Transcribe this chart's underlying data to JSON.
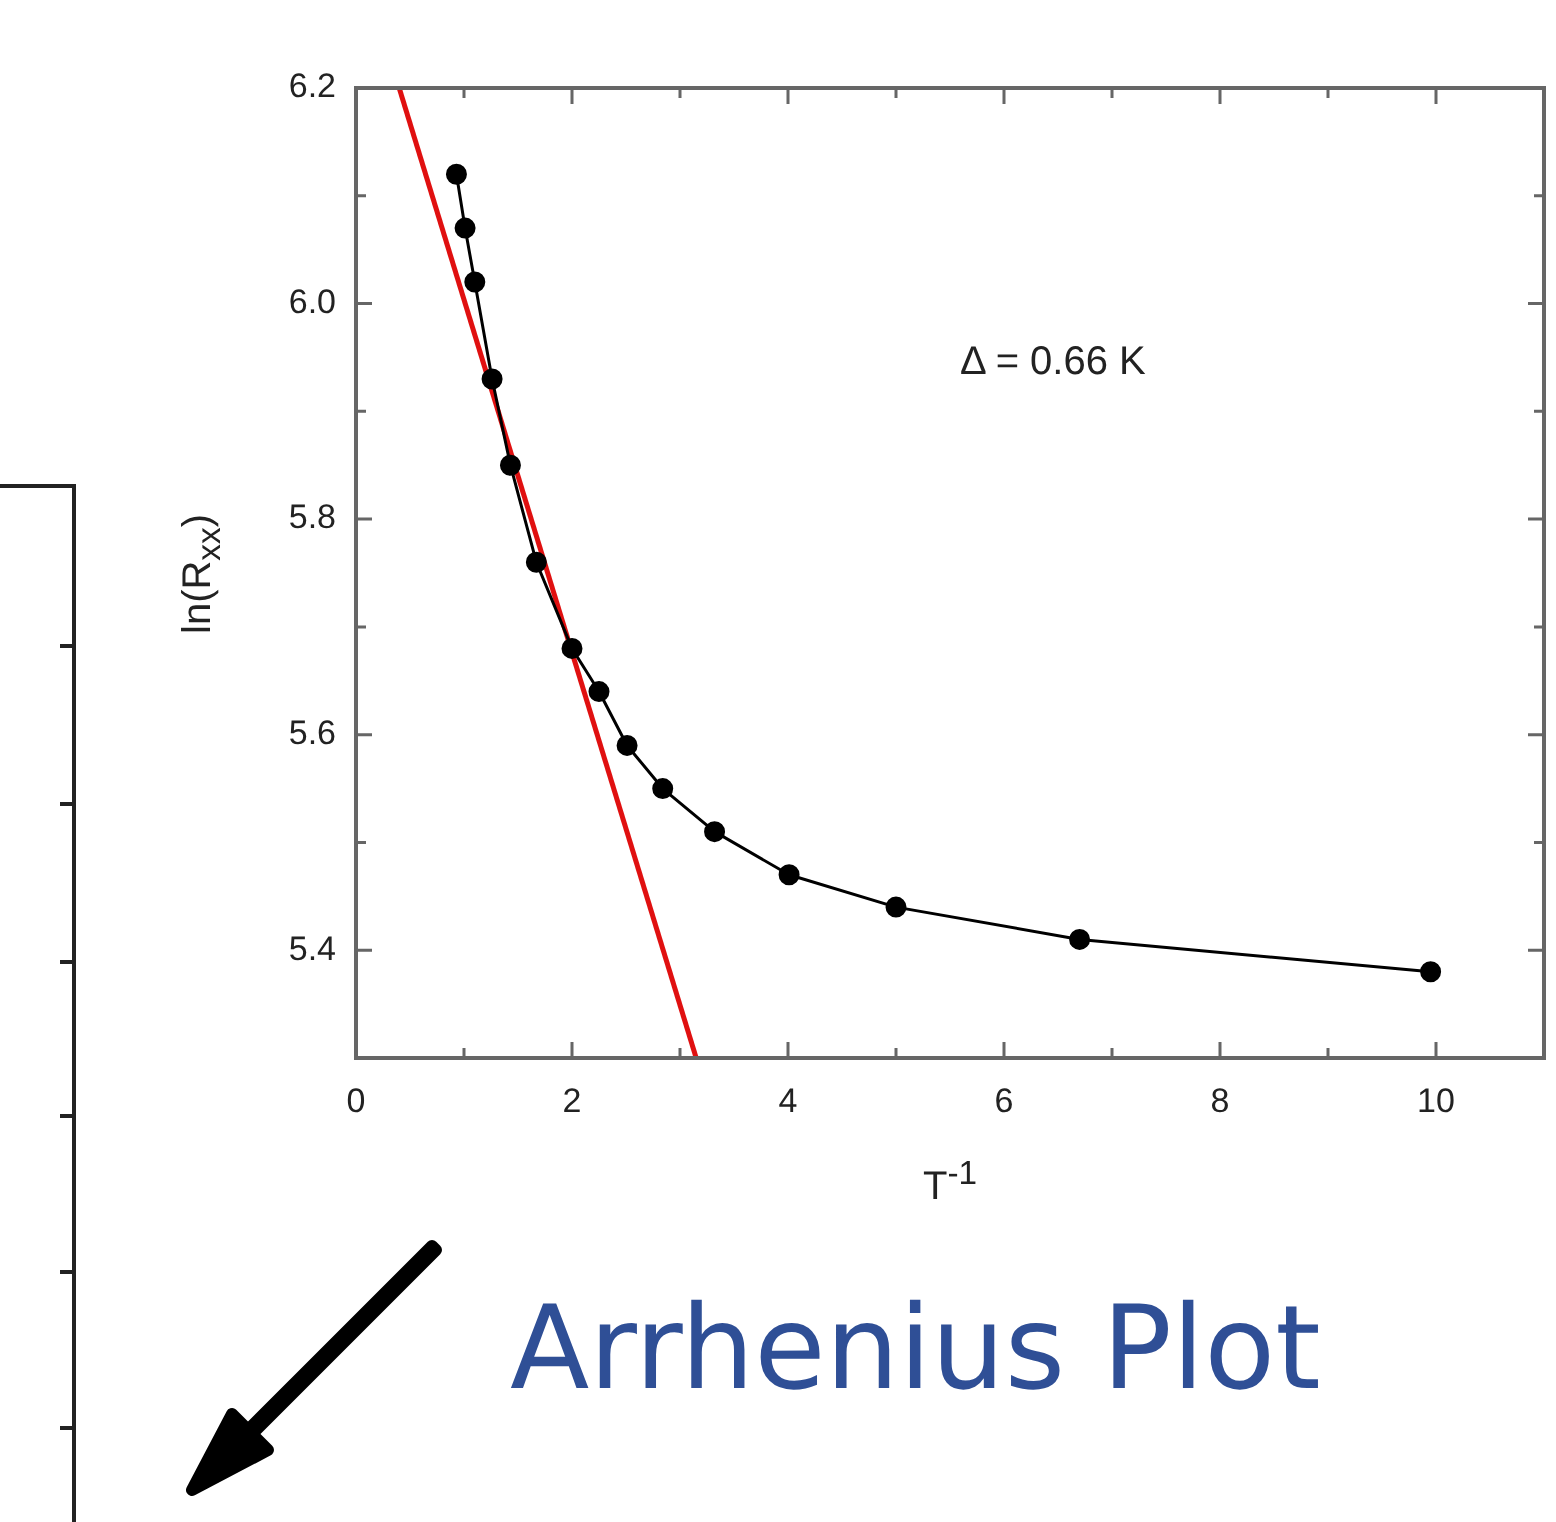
{
  "chart_data": {
    "type": "line",
    "xlabel": "T$^{-1}$",
    "ylabel": "ln(R$_{xx}$)",
    "xlim": [
      0,
      11
    ],
    "ylim": [
      5.3,
      6.2
    ],
    "xticks": [
      0,
      {
        "value": 1,
        "label": null
      },
      2,
      {
        "value": 3,
        "label": null
      },
      4,
      {
        "value": 5,
        "label": null
      },
      6,
      {
        "value": 7,
        "label": null
      },
      8,
      {
        "value": 9,
        "label": null
      },
      10
    ],
    "yticks": [
      {
        "value": 5.4,
        "label": "5.4"
      },
      {
        "value": 5.5,
        "label": null
      },
      {
        "value": 5.6,
        "label": "5.6"
      },
      {
        "value": 5.7,
        "label": null
      },
      {
        "value": 5.8,
        "label": "5.8"
      },
      {
        "value": 5.9,
        "label": null
      },
      {
        "value": 6.0,
        "label": "6.0"
      },
      {
        "value": 6.1,
        "label": null
      },
      {
        "value": 6.2,
        "label": "6.2"
      }
    ],
    "grid": false,
    "legend": false,
    "marker": "circle",
    "line_style": "solid",
    "series": [
      {
        "color": "#000000",
        "x": [
          0.93,
          1.01,
          1.1,
          1.26,
          1.43,
          1.67,
          2.0,
          2.25,
          2.51,
          2.84,
          3.32,
          4.01,
          5.0,
          6.7,
          9.95
        ],
        "values": [
          6.12,
          6.07,
          6.02,
          5.93,
          5.85,
          5.76,
          5.68,
          5.64,
          5.59,
          5.55,
          5.51,
          5.47,
          5.44,
          5.41,
          5.38
        ]
      },
      {
        "type": "line",
        "color": "#e01010",
        "marker": "none",
        "x": [
          0.4,
          3.15
        ],
        "values": [
          6.2,
          5.3
        ]
      }
    ],
    "annotations": [
      "Δ = 0.66 K",
      "Arrhenius Plot"
    ]
  }
}
